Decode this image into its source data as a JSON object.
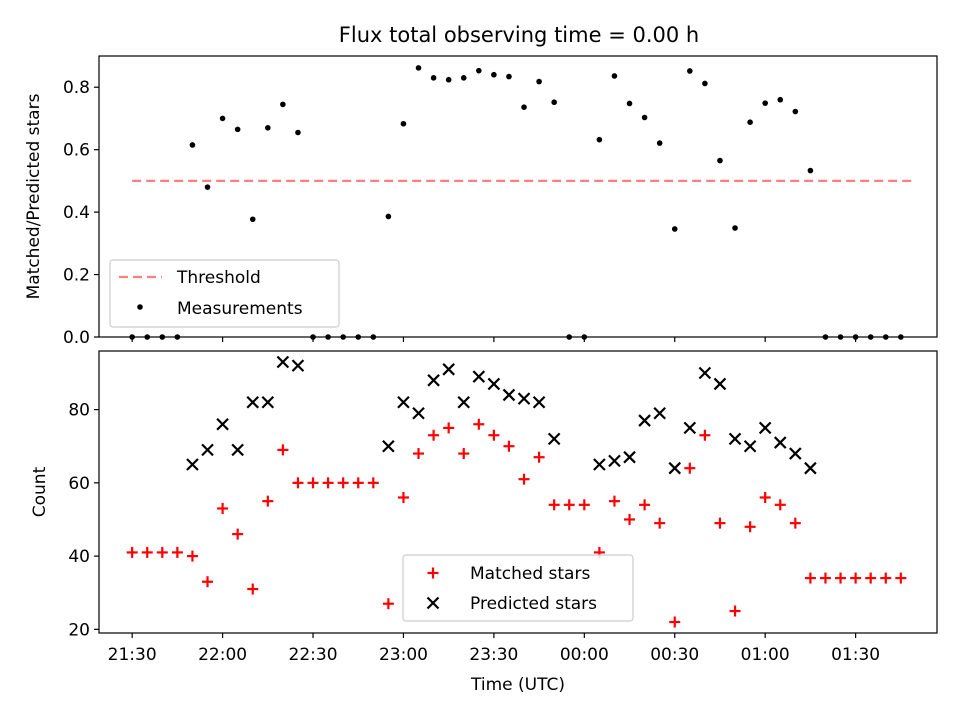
{
  "figure": {
    "title": "Flux total observing time = 0.00 h"
  },
  "chart_data": [
    {
      "type": "scatter",
      "title": "Flux total observing time = 0.00 h",
      "xlabel": "",
      "ylabel": "Matched/Predicted stars",
      "xlim": [
        "21:19",
        "01:57"
      ],
      "ylim": [
        0,
        0.9
      ],
      "yticks": [
        0.0,
        0.2,
        0.4,
        0.6,
        0.8
      ],
      "ytick_labels": [
        "0.0",
        "0.2",
        "0.4",
        "0.6",
        "0.8"
      ],
      "legend_position": "lower-left",
      "threshold": {
        "name": "Threshold",
        "value": 0.5,
        "x_start": "21:30",
        "x_end": "01:50",
        "color": "#ff7f7f",
        "style": "dashed"
      },
      "series": [
        {
          "name": "Measurements",
          "color": "#000000",
          "marker": "dot",
          "x": [
            "21:30",
            "21:35",
            "21:40",
            "21:45",
            "21:50",
            "21:55",
            "22:00",
            "22:05",
            "22:10",
            "22:15",
            "22:20",
            "22:25",
            "22:30",
            "22:35",
            "22:40",
            "22:45",
            "22:50",
            "22:55",
            "23:00",
            "23:05",
            "23:10",
            "23:15",
            "23:20",
            "23:25",
            "23:30",
            "23:35",
            "23:40",
            "23:45",
            "23:50",
            "23:55",
            "00:00",
            "00:05",
            "00:10",
            "00:15",
            "00:20",
            "00:25",
            "00:30",
            "00:35",
            "00:40",
            "00:45",
            "00:50",
            "00:55",
            "01:00",
            "01:05",
            "01:10",
            "01:15",
            "01:20",
            "01:25",
            "01:30",
            "01:35",
            "01:40",
            "01:45"
          ],
          "y": [
            0,
            0,
            0,
            0,
            0.615,
            0.48,
            0.7,
            0.665,
            0.377,
            0.67,
            0.745,
            0.655,
            0,
            0,
            0,
            0,
            0,
            0.386,
            0.683,
            0.862,
            0.83,
            0.824,
            0.83,
            0.853,
            0.84,
            0.834,
            0.736,
            0.818,
            0.752,
            0,
            0,
            0.632,
            0.836,
            0.748,
            0.703,
            0.621,
            0.346,
            0.852,
            0.812,
            0.565,
            0.349,
            0.688,
            0.749,
            0.76,
            0.722,
            0.533,
            0,
            0,
            0,
            0,
            0,
            0
          ]
        }
      ]
    },
    {
      "type": "scatter",
      "title": "",
      "xlabel": "Time (UTC)",
      "ylabel": "Count",
      "xlim": [
        "21:19",
        "01:57"
      ],
      "ylim": [
        19,
        96
      ],
      "yticks": [
        20,
        40,
        60,
        80
      ],
      "ytick_labels": [
        "20",
        "40",
        "60",
        "80"
      ],
      "xticks": [
        "21:30",
        "22:00",
        "22:30",
        "23:00",
        "23:30",
        "00:00",
        "00:30",
        "01:00",
        "01:30"
      ],
      "xtick_labels": [
        "21:30",
        "22:00",
        "22:30",
        "23:00",
        "23:30",
        "00:00",
        "00:30",
        "01:00",
        "01:30"
      ],
      "legend_position": "lower-center",
      "series": [
        {
          "name": "Matched stars",
          "color": "#ff0000",
          "marker": "plus",
          "x": [
            "21:30",
            "21:35",
            "21:40",
            "21:45",
            "21:50",
            "21:55",
            "22:00",
            "22:05",
            "22:10",
            "22:15",
            "22:20",
            "22:25",
            "22:30",
            "22:35",
            "22:40",
            "22:45",
            "22:50",
            "22:55",
            "23:00",
            "23:05",
            "23:10",
            "23:15",
            "23:20",
            "23:25",
            "23:30",
            "23:35",
            "23:40",
            "23:45",
            "23:50",
            "23:55",
            "00:00",
            "00:05",
            "00:10",
            "00:15",
            "00:20",
            "00:25",
            "00:30",
            "00:35",
            "00:40",
            "00:45",
            "00:50",
            "00:55",
            "01:00",
            "01:05",
            "01:10",
            "01:15",
            "01:20",
            "01:25",
            "01:30",
            "01:35",
            "01:40",
            "01:45"
          ],
          "y": [
            41,
            41,
            41,
            41,
            40,
            33,
            53,
            46,
            31,
            55,
            69,
            60,
            60,
            60,
            60,
            60,
            60,
            27,
            56,
            68,
            73,
            75,
            68,
            76,
            73,
            70,
            61,
            67,
            54,
            54,
            54,
            41,
            55,
            50,
            54,
            49,
            22,
            64,
            73,
            49,
            25,
            48,
            56,
            54,
            49,
            34,
            34,
            34,
            34,
            34,
            34,
            34
          ]
        },
        {
          "name": "Predicted stars",
          "color": "#000000",
          "marker": "x",
          "x": [
            "21:50",
            "21:55",
            "22:00",
            "22:05",
            "22:10",
            "22:15",
            "22:20",
            "22:25",
            "22:55",
            "23:00",
            "23:05",
            "23:10",
            "23:15",
            "23:20",
            "23:25",
            "23:30",
            "23:35",
            "23:40",
            "23:45",
            "23:50",
            "00:05",
            "00:10",
            "00:15",
            "00:20",
            "00:25",
            "00:30",
            "00:35",
            "00:40",
            "00:45",
            "00:50",
            "00:55",
            "01:00",
            "01:05",
            "01:10",
            "01:15"
          ],
          "y": [
            65,
            69,
            76,
            69,
            82,
            82,
            93,
            92,
            70,
            82,
            79,
            88,
            91,
            82,
            89,
            87,
            84,
            83,
            82,
            72,
            65,
            66,
            67,
            77,
            79,
            64,
            75,
            90,
            87,
            72,
            70,
            75,
            71,
            68,
            64
          ]
        }
      ]
    }
  ]
}
